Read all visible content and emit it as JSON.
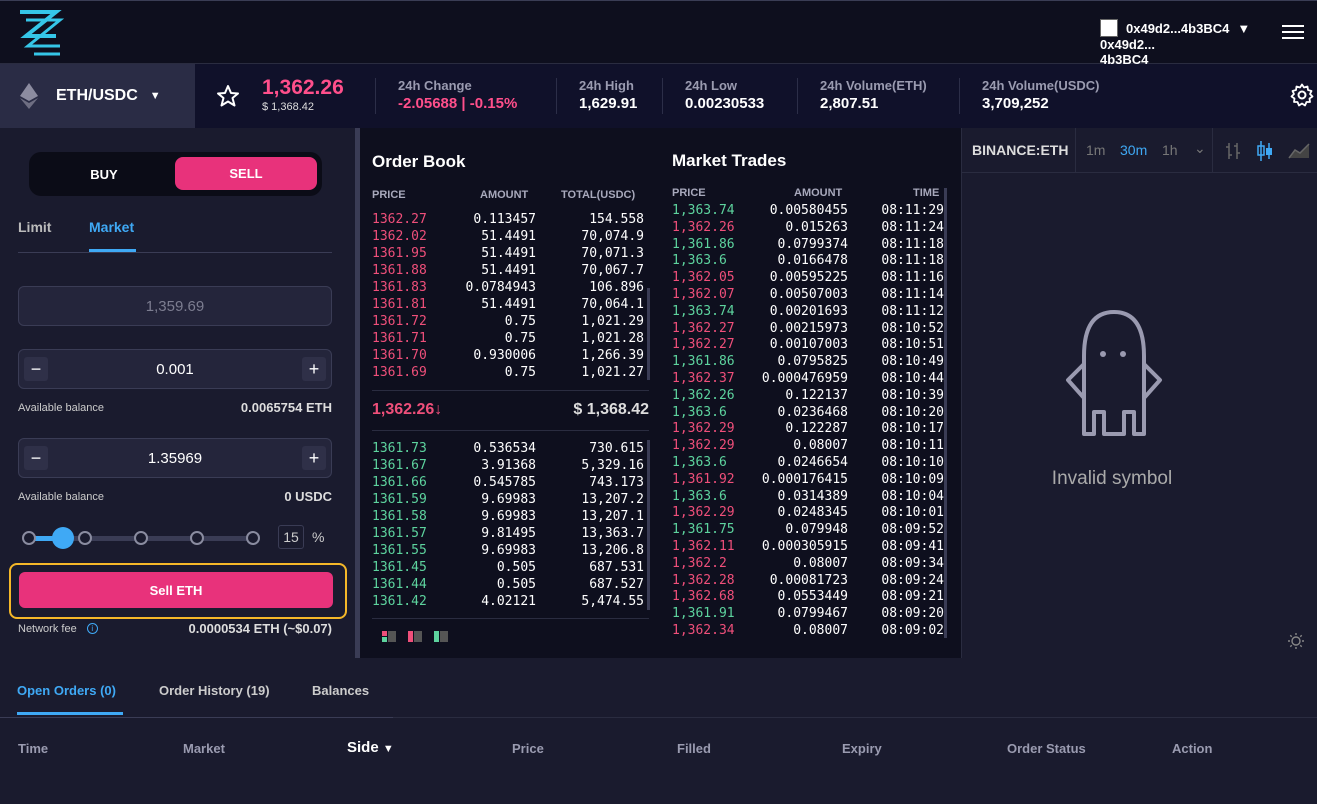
{
  "header": {
    "account_short": "0x49d2...4b3BC4",
    "account_line1": "0x49d2...",
    "account_line2": "4b3BC4"
  },
  "ticker": {
    "pair": "ETH/USDC",
    "last_price": "1,362.26",
    "last_price_usd": "$ 1,368.42",
    "stats": [
      {
        "label": "24h Change",
        "value": "-2.05688 | -0.15%",
        "color": "#ff4f8b"
      },
      {
        "label": "24h High",
        "value": "1,629.91"
      },
      {
        "label": "24h Low",
        "value": "0.00230533"
      },
      {
        "label": "24h Volume(ETH)",
        "value": "2,807.51"
      },
      {
        "label": "24h Volume(USDC)",
        "value": "3,709,252"
      }
    ]
  },
  "trade_form": {
    "buy_label": "BUY",
    "sell_label": "SELL",
    "tab_limit": "Limit",
    "tab_market": "Market",
    "price_value": "1,359.69",
    "amount_value": "0.001",
    "balance1_label": "Available balance",
    "balance1_value": "0.0065754 ETH",
    "total_value": "1.35969",
    "balance2_label": "Available balance",
    "balance2_value": "0 USDC",
    "percent_value": "15",
    "percent_sign": "%",
    "submit_label": "Sell ETH",
    "fee_label": "Network fee",
    "fee_value": "0.0000534 ETH (~$0.07)"
  },
  "order_book": {
    "title": "Order Book",
    "col_price": "PRICE",
    "col_amount": "AMOUNT",
    "col_total": "TOTAL(USDC)",
    "asks": [
      [
        "1362.27",
        "0.113457",
        "154.558"
      ],
      [
        "1362.02",
        "51.4491",
        "70,074.9"
      ],
      [
        "1361.95",
        "51.4491",
        "70,071.3"
      ],
      [
        "1361.88",
        "51.4491",
        "70,067.7"
      ],
      [
        "1361.83",
        "0.0784943",
        "106.896"
      ],
      [
        "1361.81",
        "51.4491",
        "70,064.1"
      ],
      [
        "1361.72",
        "0.75",
        "1,021.29"
      ],
      [
        "1361.71",
        "0.75",
        "1,021.28"
      ],
      [
        "1361.70",
        "0.930006",
        "1,266.39"
      ],
      [
        "1361.69",
        "0.75",
        "1,021.27"
      ]
    ],
    "mid_price": "1,362.26↓",
    "mid_usd": "$ 1,368.42",
    "bids": [
      [
        "1361.73",
        "0.536534",
        "730.615"
      ],
      [
        "1361.67",
        "3.91368",
        "5,329.16"
      ],
      [
        "1361.66",
        "0.545785",
        "743.173"
      ],
      [
        "1361.59",
        "9.69983",
        "13,207.2"
      ],
      [
        "1361.58",
        "9.69983",
        "13,207.1"
      ],
      [
        "1361.57",
        "9.81495",
        "13,363.7"
      ],
      [
        "1361.55",
        "9.69983",
        "13,206.8"
      ],
      [
        "1361.45",
        "0.505",
        "687.531"
      ],
      [
        "1361.44",
        "0.505",
        "687.527"
      ],
      [
        "1361.42",
        "4.02121",
        "5,474.55"
      ]
    ]
  },
  "market_trades": {
    "title": "Market Trades",
    "col_price": "PRICE",
    "col_amount": "AMOUNT",
    "col_time": "TIME",
    "rows": [
      [
        "1,363.74",
        "0.00580455",
        "08:11:29",
        "g"
      ],
      [
        "1,362.26",
        "0.015263",
        "08:11:24",
        "r"
      ],
      [
        "1,361.86",
        "0.0799374",
        "08:11:18",
        "g"
      ],
      [
        "1,363.6",
        "0.0166478",
        "08:11:18",
        "g"
      ],
      [
        "1,362.05",
        "0.00595225",
        "08:11:16",
        "r"
      ],
      [
        "1,362.07",
        "0.00507003",
        "08:11:14",
        "r"
      ],
      [
        "1,363.74",
        "0.00201693",
        "08:11:12",
        "g"
      ],
      [
        "1,362.27",
        "0.00215973",
        "08:10:52",
        "r"
      ],
      [
        "1,362.27",
        "0.00107003",
        "08:10:51",
        "r"
      ],
      [
        "1,361.86",
        "0.0795825",
        "08:10:49",
        "g"
      ],
      [
        "1,362.37",
        "0.000476959",
        "08:10:44",
        "r"
      ],
      [
        "1,362.26",
        "0.122137",
        "08:10:39",
        "g"
      ],
      [
        "1,363.6",
        "0.0236468",
        "08:10:20",
        "g"
      ],
      [
        "1,362.29",
        "0.122287",
        "08:10:17",
        "r"
      ],
      [
        "1,362.29",
        "0.08007",
        "08:10:11",
        "r"
      ],
      [
        "1,363.6",
        "0.0246654",
        "08:10:10",
        "g"
      ],
      [
        "1,361.92",
        "0.000176415",
        "08:10:09",
        "r"
      ],
      [
        "1,363.6",
        "0.0314389",
        "08:10:04",
        "g"
      ],
      [
        "1,362.29",
        "0.0248345",
        "08:10:01",
        "r"
      ],
      [
        "1,361.75",
        "0.079948",
        "08:09:52",
        "g"
      ],
      [
        "1,362.11",
        "0.000305915",
        "08:09:41",
        "r"
      ],
      [
        "1,362.2",
        "0.08007",
        "08:09:34",
        "r"
      ],
      [
        "1,362.28",
        "0.00081723",
        "08:09:24",
        "r"
      ],
      [
        "1,362.68",
        "0.0553449",
        "08:09:21",
        "r"
      ],
      [
        "1,361.91",
        "0.0799467",
        "08:09:20",
        "g"
      ],
      [
        "1,362.34",
        "0.08007",
        "08:09:02",
        "r"
      ]
    ]
  },
  "chart": {
    "symbol": "BINANCE:ETHUSDC",
    "intervals": [
      "1m",
      "30m",
      "1h"
    ],
    "active_interval": "30m",
    "message": "Invalid symbol"
  },
  "bottom_tabs": {
    "tabs": [
      "Open Orders (0)",
      "Order History (19)",
      "Balances"
    ],
    "columns": [
      "Time",
      "Market",
      "Side",
      "Price",
      "Filled",
      "Expiry",
      "Order Status",
      "Action"
    ]
  },
  "colors": {
    "accent": "#3fa9f5",
    "sell": "#e8327b",
    "ask": "#ef4f7a",
    "bid": "#5dd39e",
    "highlight": "#f5b829"
  }
}
